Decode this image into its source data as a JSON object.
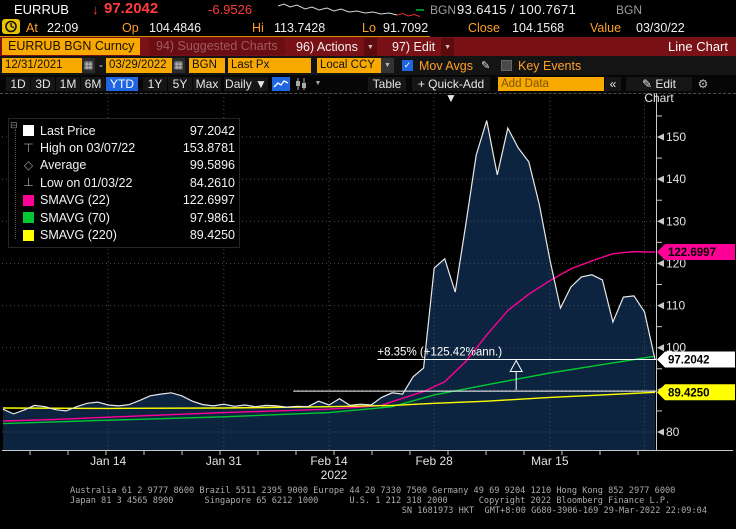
{
  "top_bar": {
    "ticker": "EURRUB",
    "direction_arrow": "↓",
    "last_price": "97.2042",
    "change": "-6.9526",
    "bid_source": "BGN",
    "bid_ask": "93.6415 / 100.7671",
    "ask_source": "BGN"
  },
  "quote_bar": {
    "at_label": "At",
    "at_time": "22:09",
    "open_label": "Op",
    "open": "104.4846",
    "high_label": "Hi",
    "high": "113.7428",
    "low_label": "Lo",
    "low": "91.7092",
    "close_label": "Close",
    "close": "104.1568",
    "value_label": "Value",
    "value_date": "03/30/22"
  },
  "menu_bar": {
    "security": "EURRUB BGN Curncy",
    "suggested_charts": "94) Suggested Charts",
    "actions": "96) Actions",
    "edit": "97) Edit",
    "chart_type": "Line Chart"
  },
  "settings_bar": {
    "date_from": "12/31/2021",
    "date_separator": "-",
    "date_to": "03/29/2022",
    "source": "BGN",
    "price_field": "Last Px",
    "currency": "Local CCY",
    "mov_avgs_label": "Mov Avgs",
    "mov_avgs_checked": true,
    "key_events_label": "Key Events",
    "key_events_checked": false,
    "calendar_icon": "▦",
    "dropdown_icon": "▼",
    "check_icon": "✓",
    "pencil_icon": "✎"
  },
  "period_bar": {
    "ranges": [
      "1D",
      "3D",
      "1M",
      "6M",
      "YTD",
      "1Y",
      "5Y",
      "Max"
    ],
    "active_range": "YTD",
    "frequency_label": "Daily ▼",
    "chart_style_caret": "▼",
    "table_label": "Table",
    "quick_add_label": "+ Quick-Add ▼",
    "add_data_placeholder": "Add Data",
    "collapse_label": "«",
    "edit_chart_label": "✎ Edit Chart",
    "gear_icon": "⚙"
  },
  "legend": {
    "items": [
      {
        "icon": "last-price-swatch",
        "glyph": "",
        "swatch": "#ffffff",
        "label": "Last Price",
        "value": "97.2042"
      },
      {
        "icon": "high-marker",
        "glyph": "⊤",
        "swatch": "",
        "label": "High on 03/07/22",
        "value": "153.8781"
      },
      {
        "icon": "average-marker",
        "glyph": "◇",
        "swatch": "",
        "label": "Average",
        "value": "99.5896"
      },
      {
        "icon": "low-marker",
        "glyph": "⊥",
        "swatch": "",
        "label": "Low on 01/03/22",
        "value": "84.2610"
      },
      {
        "icon": "smavg22-swatch",
        "glyph": "",
        "swatch": "#ff0096",
        "label": "SMAVG (22)",
        "value": "122.6997"
      },
      {
        "icon": "smavg70-swatch",
        "glyph": "",
        "swatch": "#00c832",
        "label": "SMAVG (70)",
        "value": "97.9861"
      },
      {
        "icon": "smavg220-swatch",
        "glyph": "",
        "swatch": "#ffff00",
        "label": "SMAVG (220)",
        "value": "89.4250"
      }
    ]
  },
  "chart_data": {
    "type": "area",
    "x_axis": {
      "labels": [
        {
          "text": "Jan 14",
          "day": 10
        },
        {
          "text": "Jan 31",
          "day": 21
        },
        {
          "text": "Feb 14",
          "day": 31
        },
        {
          "text": "Feb 28",
          "day": 41
        },
        {
          "text": "Mar 15",
          "day": 52
        }
      ],
      "year_label": "2022",
      "gridline_days": [
        10,
        21,
        31,
        41,
        52,
        61
      ]
    },
    "y_axis": {
      "ticks": [
        80,
        90,
        100,
        110,
        120,
        130,
        140,
        150
      ],
      "range": [
        76,
        160
      ],
      "side": "right"
    },
    "colors": {
      "area_fill": "#0d2440",
      "price_line": "#e8e8e8",
      "grid": "#4d4d4d",
      "axis": "#c8c8c8"
    },
    "series": {
      "last_price": {
        "name": "Last Price",
        "dates": [
          "12/31",
          "01/03",
          "01/04",
          "01/05",
          "01/06",
          "01/07",
          "01/10",
          "01/11",
          "01/12",
          "01/13",
          "01/14",
          "01/17",
          "01/18",
          "01/19",
          "01/20",
          "01/21",
          "01/24",
          "01/25",
          "01/26",
          "01/27",
          "01/28",
          "01/31",
          "02/01",
          "02/02",
          "02/03",
          "02/04",
          "02/07",
          "02/08",
          "02/09",
          "02/10",
          "02/11",
          "02/14",
          "02/15",
          "02/16",
          "02/17",
          "02/18",
          "02/21",
          "02/22",
          "02/23",
          "02/24",
          "02/25",
          "02/28",
          "03/01",
          "03/02",
          "03/03",
          "03/04",
          "03/07",
          "03/08",
          "03/09",
          "03/10",
          "03/11",
          "03/14",
          "03/15",
          "03/16",
          "03/17",
          "03/18",
          "03/21",
          "03/22",
          "03/23",
          "03/24",
          "03/25",
          "03/28",
          "03/29"
        ],
        "values": [
          85.4,
          84.3,
          85.2,
          86.3,
          86.0,
          85.3,
          85.0,
          86.0,
          86.8,
          87.1,
          86.4,
          86.2,
          86.5,
          87.5,
          88.6,
          89.0,
          89.3,
          88.6,
          87.3,
          86.5,
          86.2,
          86.6,
          86.1,
          86.4,
          86.0,
          86.3,
          86.2,
          85.9,
          86.1,
          86.0,
          87.3,
          86.4,
          87.9,
          86.3,
          86.6,
          86.4,
          88.2,
          89.3,
          89.0,
          93.1,
          95.2,
          118.9,
          121.1,
          113.2,
          129.1,
          145.7,
          153.88,
          141.0,
          152.1,
          147.4,
          144.1,
          134.0,
          121.0,
          109.4,
          114.4,
          116.8,
          117.3,
          116.1,
          106.1,
          112.0,
          112.3,
          108.5,
          97.2042
        ]
      },
      "moving_averages": [
        {
          "name": "SMAVG (22)",
          "color": "#ff0096",
          "points": [
            [
              0,
              82.6
            ],
            [
              5,
              83.0
            ],
            [
              10,
              83.5
            ],
            [
              15,
              84.0
            ],
            [
              21,
              84.6
            ],
            [
              26,
              85.0
            ],
            [
              31,
              85.4
            ],
            [
              34,
              85.9
            ],
            [
              36,
              86.3
            ],
            [
              37,
              87.2
            ],
            [
              40,
              89.6
            ],
            [
              42,
              91.9
            ],
            [
              44,
              96.7
            ],
            [
              46,
              103.0
            ],
            [
              48,
              108.8
            ],
            [
              50,
              112.7
            ],
            [
              52,
              115.9
            ],
            [
              54,
              118.7
            ],
            [
              56,
              120.6
            ],
            [
              58,
              122.3
            ],
            [
              60,
              122.8
            ],
            [
              62,
              122.6997
            ]
          ]
        },
        {
          "name": "SMAVG (70)",
          "color": "#00c832",
          "points": [
            [
              0,
              82.0
            ],
            [
              10,
              82.8
            ],
            [
              21,
              83.6
            ],
            [
              31,
              84.6
            ],
            [
              37,
              86.0
            ],
            [
              41,
              88.8
            ],
            [
              46,
              91.2
            ],
            [
              52,
              94.0
            ],
            [
              57,
              96.0
            ],
            [
              62,
              97.9861
            ]
          ]
        },
        {
          "name": "SMAVG (220)",
          "color": "#ffff00",
          "points": [
            [
              0,
              85.7
            ],
            [
              10,
              85.6
            ],
            [
              21,
              85.7
            ],
            [
              31,
              86.0
            ],
            [
              37,
              86.3
            ],
            [
              41,
              86.8
            ],
            [
              46,
              87.3
            ],
            [
              52,
              88.2
            ],
            [
              57,
              88.8
            ],
            [
              62,
              89.425
            ]
          ]
        }
      ]
    },
    "stats": {
      "last": 97.2042,
      "high": {
        "date": "03/07/22",
        "value": 153.8781
      },
      "average": 99.5896,
      "low": {
        "date": "01/03/22",
        "value": 84.261
      }
    },
    "annotation": {
      "text": "+8.35% (+125.42%ann.)",
      "start_level": 89.71,
      "end_level": 97.2042,
      "lower_line_start_day": 27.6,
      "upper_line_start_day": 35.6,
      "arrow_day": 48.8
    },
    "price_badges": [
      {
        "value": "122.6997",
        "level": 122.6997,
        "color": "#ff0096",
        "text_color": "#000000"
      },
      {
        "value": "97.2042",
        "level": 97.2042,
        "color": "#ffffff",
        "text_color": "#000000"
      },
      {
        "value": "89.4250",
        "level": 89.425,
        "color": "#ffff00",
        "text_color": "#000000"
      }
    ],
    "sparkline": {
      "white": [
        [
          0,
          5
        ],
        [
          6,
          3
        ],
        [
          12,
          6
        ],
        [
          19,
          4
        ],
        [
          27,
          8
        ],
        [
          34,
          6
        ],
        [
          41,
          9
        ],
        [
          49,
          7
        ],
        [
          56,
          10
        ],
        [
          63,
          8
        ],
        [
          71,
          11
        ],
        [
          79,
          10
        ],
        [
          87,
          12
        ],
        [
          95,
          11
        ],
        [
          103,
          13
        ],
        [
          111,
          12
        ],
        [
          119,
          14
        ]
      ],
      "red": [
        [
          119,
          14
        ],
        [
          125,
          12.5
        ],
        [
          130,
          15
        ],
        [
          136,
          13.5
        ],
        [
          142,
          15.5
        ]
      ],
      "green": [
        [
          138,
          9
        ],
        [
          146,
          9
        ]
      ]
    }
  },
  "footer": {
    "lines": [
      "Australia 61 2 9777 8600 Brazil 5511 2395 9000 Europe 44 20 7330 7500 Germany 49 69 9204 1210 Hong Kong 852 2977 6000",
      "Japan 81 3 4565 8900      Singapore 65 6212 1000      U.S. 1 212 318 2000      Copyright 2022 Bloomberg Finance L.P.",
      "SN 1681973 HKT  GMT+8:00 G680-3906-169 29-Mar-2022 22:09:04"
    ]
  }
}
